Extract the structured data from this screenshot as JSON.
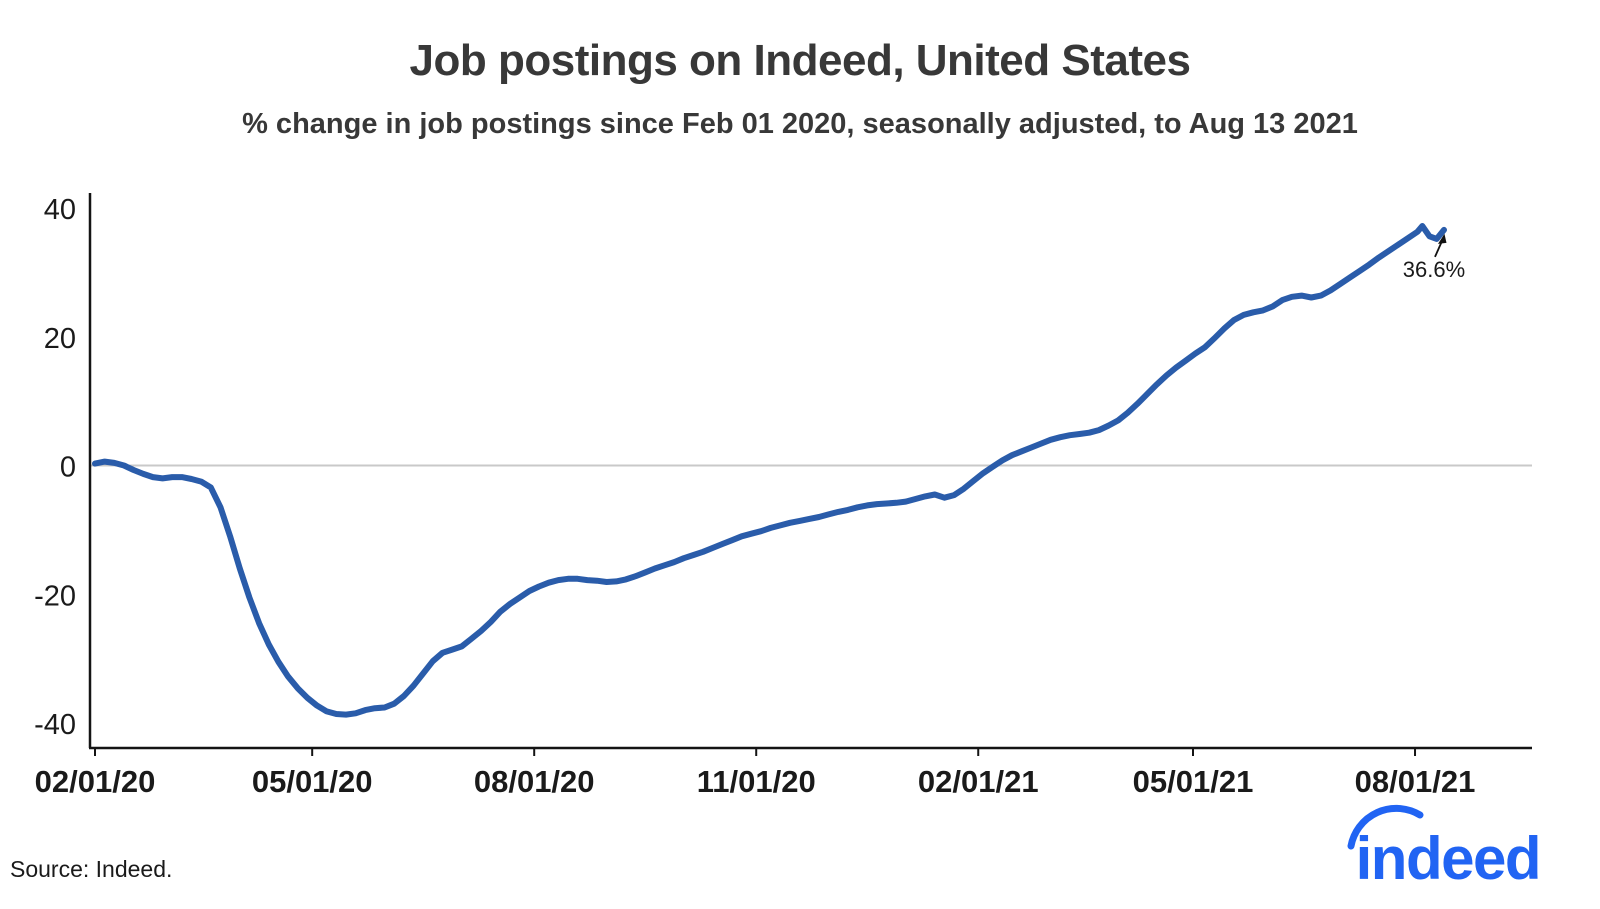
{
  "footer": {
    "source": "Source: Indeed.",
    "logo_text": "indeed"
  },
  "chart_data": {
    "type": "line",
    "title": "Job postings on Indeed, United States",
    "subtitle": "% change in job postings since Feb 01 2020, seasonally adjusted, to Aug 13 2021",
    "xlabel": "",
    "ylabel": "",
    "ylim": [
      -40,
      40
    ],
    "yticks": [
      40,
      20,
      0,
      -20,
      -40
    ],
    "x_start": "2020-02-01",
    "x_end": "2021-09-10",
    "zero_line": true,
    "grid": false,
    "legend": false,
    "line_color": "#2a5caa",
    "axis_color": "#141414",
    "zero_line_color": "#c9c9c9",
    "annotation": {
      "label": "36.6%",
      "date": "2021-08-13",
      "value": 36.6
    },
    "final_value": 36.6,
    "xticks": [
      {
        "date": "2020-02-01",
        "label": "02/01/20"
      },
      {
        "date": "2020-05-01",
        "label": "05/01/20"
      },
      {
        "date": "2020-08-01",
        "label": "08/01/20"
      },
      {
        "date": "2020-11-01",
        "label": "11/01/20"
      },
      {
        "date": "2021-02-01",
        "label": "02/01/21"
      },
      {
        "date": "2021-05-01",
        "label": "05/01/21"
      },
      {
        "date": "2021-08-01",
        "label": "08/01/21"
      }
    ],
    "series": [
      {
        "name": "US job postings, % change since Feb 01 2020",
        "points": [
          [
            "2020-02-01",
            0.3
          ],
          [
            "2020-02-05",
            0.6
          ],
          [
            "2020-02-09",
            0.4
          ],
          [
            "2020-02-13",
            0.0
          ],
          [
            "2020-02-17",
            -0.7
          ],
          [
            "2020-02-21",
            -1.3
          ],
          [
            "2020-02-25",
            -1.8
          ],
          [
            "2020-02-29",
            -2.0
          ],
          [
            "2020-03-04",
            -1.8
          ],
          [
            "2020-03-08",
            -1.8
          ],
          [
            "2020-03-12",
            -2.1
          ],
          [
            "2020-03-16",
            -2.5
          ],
          [
            "2020-03-20",
            -3.4
          ],
          [
            "2020-03-24",
            -6.5
          ],
          [
            "2020-03-28",
            -11.0
          ],
          [
            "2020-04-01",
            -16.0
          ],
          [
            "2020-04-05",
            -20.5
          ],
          [
            "2020-04-09",
            -24.5
          ],
          [
            "2020-04-13",
            -27.8
          ],
          [
            "2020-04-17",
            -30.5
          ],
          [
            "2020-04-21",
            -32.8
          ],
          [
            "2020-04-25",
            -34.6
          ],
          [
            "2020-04-29",
            -36.1
          ],
          [
            "2020-05-03",
            -37.3
          ],
          [
            "2020-05-07",
            -38.2
          ],
          [
            "2020-05-11",
            -38.6
          ],
          [
            "2020-05-15",
            -38.7
          ],
          [
            "2020-05-19",
            -38.5
          ],
          [
            "2020-05-23",
            -38.0
          ],
          [
            "2020-05-27",
            -37.7
          ],
          [
            "2020-05-31",
            -37.6
          ],
          [
            "2020-06-04",
            -37.0
          ],
          [
            "2020-06-08",
            -35.8
          ],
          [
            "2020-06-12",
            -34.2
          ],
          [
            "2020-06-16",
            -32.3
          ],
          [
            "2020-06-20",
            -30.4
          ],
          [
            "2020-06-24",
            -29.1
          ],
          [
            "2020-06-28",
            -28.6
          ],
          [
            "2020-07-02",
            -28.1
          ],
          [
            "2020-07-06",
            -26.9
          ],
          [
            "2020-07-10",
            -25.7
          ],
          [
            "2020-07-14",
            -24.3
          ],
          [
            "2020-07-18",
            -22.7
          ],
          [
            "2020-07-22",
            -21.5
          ],
          [
            "2020-07-26",
            -20.5
          ],
          [
            "2020-07-30",
            -19.5
          ],
          [
            "2020-08-03",
            -18.8
          ],
          [
            "2020-08-07",
            -18.2
          ],
          [
            "2020-08-11",
            -17.8
          ],
          [
            "2020-08-15",
            -17.6
          ],
          [
            "2020-08-19",
            -17.6
          ],
          [
            "2020-08-23",
            -17.8
          ],
          [
            "2020-08-27",
            -17.9
          ],
          [
            "2020-08-31",
            -18.1
          ],
          [
            "2020-09-04",
            -18.0
          ],
          [
            "2020-09-08",
            -17.7
          ],
          [
            "2020-09-12",
            -17.2
          ],
          [
            "2020-09-16",
            -16.6
          ],
          [
            "2020-09-20",
            -16.0
          ],
          [
            "2020-09-24",
            -15.5
          ],
          [
            "2020-09-28",
            -15.0
          ],
          [
            "2020-10-02",
            -14.4
          ],
          [
            "2020-10-06",
            -13.9
          ],
          [
            "2020-10-10",
            -13.4
          ],
          [
            "2020-10-14",
            -12.8
          ],
          [
            "2020-10-18",
            -12.2
          ],
          [
            "2020-10-22",
            -11.6
          ],
          [
            "2020-10-26",
            -11.0
          ],
          [
            "2020-10-30",
            -10.6
          ],
          [
            "2020-11-03",
            -10.2
          ],
          [
            "2020-11-07",
            -9.7
          ],
          [
            "2020-11-11",
            -9.3
          ],
          [
            "2020-11-15",
            -8.9
          ],
          [
            "2020-11-19",
            -8.6
          ],
          [
            "2020-11-23",
            -8.3
          ],
          [
            "2020-11-27",
            -8.0
          ],
          [
            "2020-12-01",
            -7.6
          ],
          [
            "2020-12-05",
            -7.2
          ],
          [
            "2020-12-09",
            -6.9
          ],
          [
            "2020-12-13",
            -6.5
          ],
          [
            "2020-12-17",
            -6.2
          ],
          [
            "2020-12-21",
            -6.0
          ],
          [
            "2020-12-25",
            -5.9
          ],
          [
            "2020-12-29",
            -5.8
          ],
          [
            "2021-01-02",
            -5.6
          ],
          [
            "2021-01-06",
            -5.2
          ],
          [
            "2021-01-10",
            -4.8
          ],
          [
            "2021-01-14",
            -4.5
          ],
          [
            "2021-01-18",
            -5.0
          ],
          [
            "2021-01-22",
            -4.6
          ],
          [
            "2021-01-26",
            -3.6
          ],
          [
            "2021-01-30",
            -2.4
          ],
          [
            "2021-02-03",
            -1.2
          ],
          [
            "2021-02-07",
            -0.2
          ],
          [
            "2021-02-11",
            0.8
          ],
          [
            "2021-02-15",
            1.6
          ],
          [
            "2021-02-19",
            2.2
          ],
          [
            "2021-02-23",
            2.8
          ],
          [
            "2021-02-27",
            3.4
          ],
          [
            "2021-03-03",
            4.0
          ],
          [
            "2021-03-07",
            4.4
          ],
          [
            "2021-03-11",
            4.7
          ],
          [
            "2021-03-15",
            4.9
          ],
          [
            "2021-03-19",
            5.1
          ],
          [
            "2021-03-23",
            5.5
          ],
          [
            "2021-03-27",
            6.2
          ],
          [
            "2021-03-31",
            7.0
          ],
          [
            "2021-04-04",
            8.2
          ],
          [
            "2021-04-08",
            9.6
          ],
          [
            "2021-04-12",
            11.1
          ],
          [
            "2021-04-16",
            12.6
          ],
          [
            "2021-04-20",
            14.0
          ],
          [
            "2021-04-24",
            15.2
          ],
          [
            "2021-04-28",
            16.3
          ],
          [
            "2021-05-02",
            17.4
          ],
          [
            "2021-05-06",
            18.4
          ],
          [
            "2021-05-10",
            19.8
          ],
          [
            "2021-05-14",
            21.3
          ],
          [
            "2021-05-18",
            22.6
          ],
          [
            "2021-05-22",
            23.4
          ],
          [
            "2021-05-26",
            23.8
          ],
          [
            "2021-05-30",
            24.1
          ],
          [
            "2021-06-03",
            24.7
          ],
          [
            "2021-06-07",
            25.7
          ],
          [
            "2021-06-11",
            26.2
          ],
          [
            "2021-06-15",
            26.4
          ],
          [
            "2021-06-19",
            26.1
          ],
          [
            "2021-06-23",
            26.4
          ],
          [
            "2021-06-27",
            27.2
          ],
          [
            "2021-07-01",
            28.2
          ],
          [
            "2021-07-05",
            29.2
          ],
          [
            "2021-07-09",
            30.2
          ],
          [
            "2021-07-13",
            31.2
          ],
          [
            "2021-07-17",
            32.3
          ],
          [
            "2021-07-21",
            33.3
          ],
          [
            "2021-07-25",
            34.3
          ],
          [
            "2021-07-29",
            35.3
          ],
          [
            "2021-08-02",
            36.3
          ],
          [
            "2021-08-04",
            37.2
          ],
          [
            "2021-08-07",
            35.6
          ],
          [
            "2021-08-10",
            35.2
          ],
          [
            "2021-08-13",
            36.6
          ]
        ]
      }
    ]
  }
}
